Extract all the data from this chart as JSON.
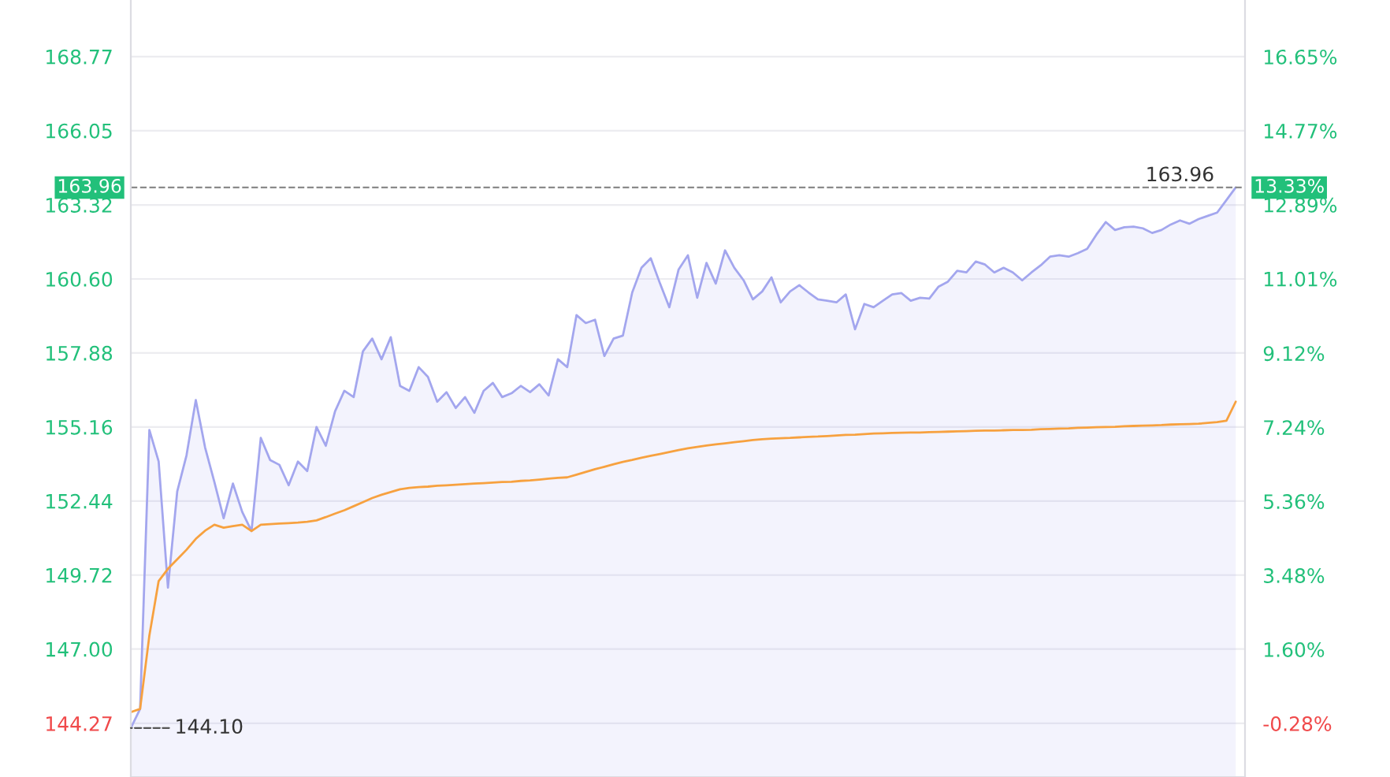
{
  "chart_data": {
    "type": "line",
    "categories": [
      null,
      null,
      null,
      null,
      null,
      null,
      null,
      null,
      null,
      null,
      null,
      null,
      null,
      null,
      null,
      null,
      null,
      null,
      null,
      null,
      null,
      null,
      null,
      null,
      null,
      null,
      null,
      null,
      null,
      null,
      null,
      null,
      null,
      null,
      null,
      null,
      null,
      null,
      null,
      null,
      null,
      null,
      null,
      null,
      null,
      null,
      null,
      null,
      null,
      null,
      null,
      null,
      null,
      null,
      null,
      null,
      null,
      null,
      null,
      null,
      null,
      null,
      null,
      null,
      null,
      null,
      null,
      null,
      null,
      null,
      null,
      null,
      null,
      null,
      null,
      null,
      null,
      null,
      null,
      null,
      null,
      null,
      null,
      null,
      null,
      null,
      null,
      null,
      null,
      null,
      null,
      null,
      null,
      null,
      null,
      null,
      null,
      null,
      null,
      null,
      null,
      null,
      null,
      null,
      null,
      null,
      null,
      null,
      null,
      null,
      null,
      null,
      null,
      null,
      null,
      null,
      null,
      null,
      null,
      null
    ],
    "ylim": [
      142.3,
      170.85
    ],
    "yticks": [
      144.27,
      {
        "value": 147.0,
        "label": "147.00"
      },
      149.72,
      152.44,
      155.16,
      157.88,
      {
        "value": 160.6,
        "label": "160.60"
      },
      163.32,
      166.05,
      168.77
    ],
    "y2lim": [
      -1.64,
      18.09
    ],
    "y2ticks": [
      {
        "value": -0.28,
        "label": "-0.28%"
      },
      {
        "value": 1.6,
        "label": "1.60%"
      },
      {
        "value": 3.48,
        "label": "3.48%"
      },
      {
        "value": 5.36,
        "label": "5.36%"
      },
      {
        "value": 7.24,
        "label": "7.24%"
      },
      {
        "value": 9.12,
        "label": "9.12%"
      },
      {
        "value": 11.01,
        "label": "11.01%"
      },
      {
        "value": 12.89,
        "label": "12.89%"
      },
      {
        "value": 14.77,
        "label": "14.77%"
      },
      {
        "value": 16.65,
        "label": "16.65%"
      }
    ],
    "grid": "y",
    "series": [
      {
        "type": "area",
        "color": "#a3a6ee",
        "values": [
          144.1,
          144.8,
          155.05,
          153.89,
          149.26,
          152.79,
          154.12,
          156.15,
          154.41,
          153.14,
          151.81,
          153.08,
          152.04,
          151.34,
          154.76,
          153.95,
          153.77,
          153.02,
          153.89,
          153.54,
          155.16,
          154.47,
          155.74,
          156.49,
          156.26,
          157.94,
          158.41,
          157.65,
          158.46,
          156.67,
          156.49,
          157.36,
          157.0,
          156.09,
          156.44,
          155.86,
          156.26,
          155.68,
          156.49,
          156.78,
          156.26,
          156.4,
          156.67,
          156.44,
          156.73,
          156.32,
          157.65,
          157.36,
          159.27,
          158.98,
          159.1,
          157.77,
          158.41,
          158.52,
          160.1,
          161.01,
          161.36,
          160.43,
          159.56,
          160.95,
          161.47,
          159.91,
          161.19,
          160.43,
          161.65,
          161.01,
          160.55,
          159.85,
          160.14,
          160.66,
          159.74,
          160.14,
          160.37,
          160.1,
          159.85,
          159.8,
          159.74,
          160.03,
          158.75,
          159.68,
          159.56,
          159.8,
          160.03,
          160.08,
          159.8,
          159.91,
          159.88,
          160.32,
          160.5,
          160.9,
          160.84,
          161.24,
          161.13,
          160.84,
          161.01,
          160.84,
          160.55,
          160.84,
          161.1,
          161.42,
          161.47,
          161.42,
          161.55,
          161.71,
          162.23,
          162.69,
          162.4,
          162.5,
          162.52,
          162.46,
          162.29,
          162.4,
          162.6,
          162.75,
          162.63,
          162.8,
          162.92,
          163.04,
          163.5,
          163.96
        ]
      },
      {
        "color": "#f7a13f",
        "values": [
          144.68,
          144.8,
          147.5,
          149.5,
          149.95,
          150.3,
          150.65,
          151.05,
          151.35,
          151.57,
          151.46,
          151.52,
          151.57,
          151.34,
          151.57,
          151.59,
          151.61,
          151.63,
          151.65,
          151.68,
          151.73,
          151.85,
          151.98,
          152.1,
          152.25,
          152.4,
          152.55,
          152.67,
          152.77,
          152.87,
          152.92,
          152.95,
          152.97,
          153.0,
          153.02,
          153.04,
          153.06,
          153.08,
          153.1,
          153.12,
          153.14,
          153.15,
          153.18,
          153.2,
          153.23,
          153.26,
          153.29,
          153.31,
          153.41,
          153.51,
          153.61,
          153.7,
          153.79,
          153.88,
          153.95,
          154.03,
          154.1,
          154.17,
          154.24,
          154.31,
          154.38,
          154.43,
          154.48,
          154.52,
          154.56,
          154.6,
          154.64,
          154.68,
          154.71,
          154.73,
          154.75,
          154.76,
          154.78,
          154.8,
          154.81,
          154.83,
          154.85,
          154.87,
          154.88,
          154.9,
          154.92,
          154.93,
          154.94,
          154.95,
          154.96,
          154.96,
          154.97,
          154.98,
          154.99,
          155.0,
          155.01,
          155.02,
          155.03,
          155.03,
          155.04,
          155.05,
          155.05,
          155.06,
          155.08,
          155.09,
          155.1,
          155.11,
          155.13,
          155.14,
          155.15,
          155.16,
          155.17,
          155.19,
          155.2,
          155.21,
          155.22,
          155.23,
          155.25,
          155.26,
          155.27,
          155.28,
          155.31,
          155.34,
          155.39,
          156.09
        ]
      }
    ],
    "ref_lines": [
      {
        "axis": "y",
        "value": 163.96,
        "label": "163.96",
        "color": "#8a8a8a",
        "line_style": "dashed"
      }
    ],
    "annotations": [
      "144.10",
      "13.33%"
    ]
  }
}
